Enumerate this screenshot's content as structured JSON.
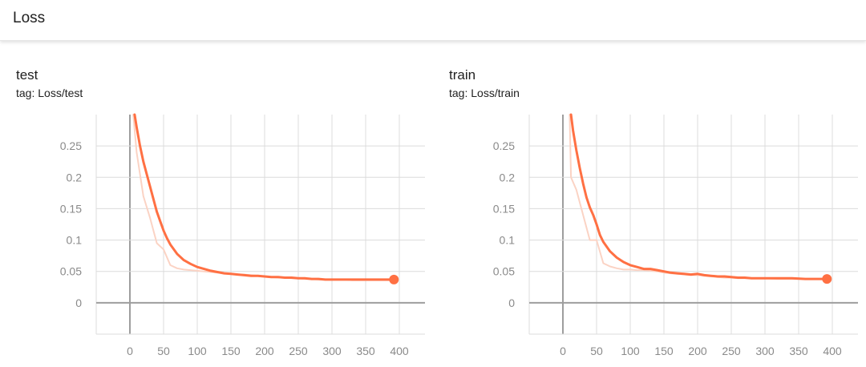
{
  "section": {
    "title": "Loss"
  },
  "charts": [
    {
      "title": "test",
      "tag": "tag: Loss/test",
      "chart_data": {
        "type": "line",
        "xlim": [
          -50,
          450
        ],
        "ylim": [
          -0.05,
          0.3
        ],
        "x_ticks": [
          0,
          50,
          100,
          150,
          200,
          250,
          300,
          350,
          400
        ],
        "x_tick_labels": [
          "0",
          "50",
          "100",
          "150",
          "200",
          "250",
          "300",
          "350",
          "400"
        ],
        "y_ticks": [
          0,
          0.05,
          0.1,
          0.15,
          0.2,
          0.25
        ],
        "y_tick_labels": [
          "0",
          "0.05",
          "0.1",
          "0.15",
          "0.2",
          "0.25"
        ],
        "grid": true,
        "series": [
          {
            "role": "raw",
            "color": "#fbd3c4",
            "x": [
              5,
              10,
              20,
              30,
              40,
              50,
              60,
              70,
              80,
              90,
              100,
              110,
              120,
              130,
              140,
              150,
              160,
              170,
              180,
              190,
              200,
              210,
              220,
              230,
              240,
              250,
              260,
              270,
              280,
              290,
              300,
              310,
              320,
              330,
              340,
              350,
              360,
              370,
              380,
              390
            ],
            "y": [
              0.3,
              0.24,
              0.17,
              0.135,
              0.095,
              0.085,
              0.06,
              0.055,
              0.053,
              0.052,
              0.051,
              0.05,
              0.049,
              0.048,
              0.047,
              0.046,
              0.045,
              0.045,
              0.044,
              0.043,
              0.042,
              0.041,
              0.04,
              0.04,
              0.039,
              0.039,
              0.038,
              0.038,
              0.037,
              0.037,
              0.037,
              0.037,
              0.037,
              0.036,
              0.036,
              0.036,
              0.036,
              0.036,
              0.036,
              0.036
            ]
          },
          {
            "role": "smoothed",
            "color": "#ff7043",
            "x": [
              7,
              10,
              15,
              20,
              25,
              30,
              35,
              40,
              45,
              50,
              55,
              60,
              70,
              80,
              90,
              100,
              110,
              120,
              130,
              140,
              150,
              160,
              170,
              180,
              190,
              200,
              210,
              220,
              230,
              240,
              250,
              260,
              270,
              280,
              290,
              300,
              320,
              340,
              360,
              380,
              392
            ],
            "y": [
              0.3,
              0.28,
              0.25,
              0.225,
              0.205,
              0.185,
              0.165,
              0.145,
              0.13,
              0.115,
              0.103,
              0.093,
              0.078,
              0.068,
              0.062,
              0.057,
              0.054,
              0.051,
              0.049,
              0.047,
              0.046,
              0.045,
              0.044,
              0.043,
              0.043,
              0.042,
              0.041,
              0.041,
              0.04,
              0.04,
              0.039,
              0.039,
              0.038,
              0.038,
              0.037,
              0.037,
              0.037,
              0.037,
              0.037,
              0.037,
              0.037
            ]
          }
        ]
      }
    },
    {
      "title": "train",
      "tag": "tag: Loss/train",
      "chart_data": {
        "type": "line",
        "xlim": [
          -50,
          450
        ],
        "ylim": [
          -0.05,
          0.3
        ],
        "x_ticks": [
          0,
          50,
          100,
          150,
          200,
          250,
          300,
          350,
          400
        ],
        "x_tick_labels": [
          "0",
          "50",
          "100",
          "150",
          "200",
          "250",
          "300",
          "350",
          "400"
        ],
        "y_ticks": [
          0,
          0.05,
          0.1,
          0.15,
          0.2,
          0.25
        ],
        "y_tick_labels": [
          "0",
          "0.05",
          "0.1",
          "0.15",
          "0.2",
          "0.25"
        ],
        "grid": true,
        "series": [
          {
            "role": "raw",
            "color": "#fbd3c4",
            "x": [
              10,
              12,
              20,
              30,
              40,
              50,
              60,
              70,
              80,
              90,
              100,
              110,
              120,
              130,
              140,
              150,
              160,
              170,
              180,
              190,
              200,
              210,
              220,
              230,
              240,
              250,
              260,
              270,
              280,
              290,
              300,
              320,
              340,
              360,
              380,
              392
            ],
            "y": [
              0.3,
              0.2,
              0.18,
              0.14,
              0.1,
              0.1,
              0.063,
              0.058,
              0.055,
              0.053,
              0.053,
              0.052,
              0.052,
              0.051,
              0.05,
              0.048,
              0.047,
              0.046,
              0.045,
              0.044,
              0.044,
              0.043,
              0.042,
              0.041,
              0.04,
              0.04,
              0.039,
              0.039,
              0.039,
              0.039,
              0.039,
              0.038,
              0.038,
              0.038,
              0.038,
              0.038
            ]
          },
          {
            "role": "smoothed",
            "color": "#ff7043",
            "x": [
              12,
              15,
              20,
              25,
              30,
              35,
              40,
              45,
              50,
              55,
              60,
              70,
              80,
              90,
              100,
              110,
              120,
              130,
              140,
              150,
              160,
              170,
              180,
              190,
              200,
              210,
              220,
              230,
              240,
              250,
              260,
              270,
              280,
              290,
              300,
              320,
              340,
              360,
              380,
              392
            ],
            "y": [
              0.3,
              0.275,
              0.243,
              0.215,
              0.19,
              0.168,
              0.152,
              0.14,
              0.125,
              0.108,
              0.097,
              0.082,
              0.072,
              0.065,
              0.06,
              0.057,
              0.054,
              0.054,
              0.052,
              0.05,
              0.048,
              0.047,
              0.046,
              0.045,
              0.046,
              0.044,
              0.043,
              0.042,
              0.042,
              0.041,
              0.04,
              0.04,
              0.039,
              0.039,
              0.039,
              0.039,
              0.039,
              0.038,
              0.038,
              0.038
            ]
          }
        ]
      }
    }
  ]
}
